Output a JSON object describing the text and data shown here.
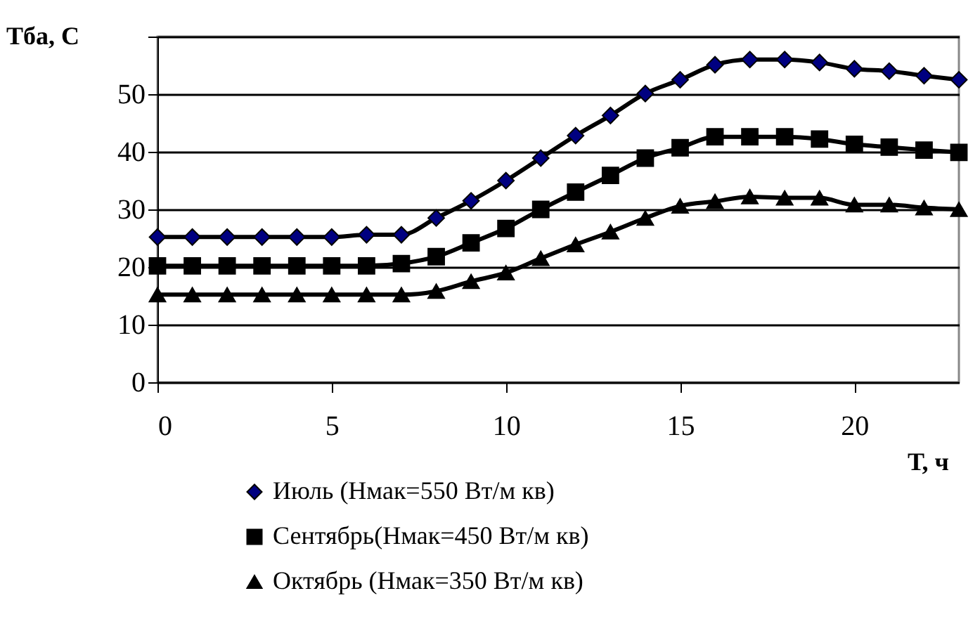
{
  "chart_data": {
    "type": "line",
    "xlabel": "Т, ч",
    "ylabel": "Тба, С",
    "x": [
      0,
      1,
      2,
      3,
      4,
      5,
      6,
      7,
      8,
      9,
      10,
      11,
      12,
      13,
      14,
      15,
      16,
      17,
      18,
      19,
      20,
      21,
      22,
      23
    ],
    "xlim": [
      0,
      23
    ],
    "xticks": [
      0,
      5,
      10,
      15,
      20
    ],
    "ylim": [
      0,
      60
    ],
    "yticks": [
      0,
      10,
      20,
      30,
      40,
      50,
      {
        "value": 60,
        "label": null
      }
    ],
    "grid": "y",
    "legend": "bottom",
    "line_style": "solid",
    "series": [
      {
        "name": "Июль (Нмак=550 Вт/м кв)",
        "color": "#000080",
        "marker": "diamond",
        "values": [
          25.2,
          25.2,
          25.2,
          25.2,
          25.2,
          25.2,
          25.6,
          25.6,
          28.5,
          31.5,
          35.0,
          38.9,
          42.8,
          46.3,
          50.1,
          52.5,
          55.1,
          56.0,
          56.0,
          55.5,
          54.4,
          54.0,
          53.2,
          52.5
        ]
      },
      {
        "name": "Сентябрь(Нмак=450 Вт/м кв)",
        "color": "#000000",
        "marker": "square",
        "values": [
          20.2,
          20.2,
          20.2,
          20.2,
          20.2,
          20.2,
          20.2,
          20.6,
          21.8,
          24.2,
          26.7,
          30.0,
          33.0,
          35.9,
          38.9,
          40.7,
          42.6,
          42.6,
          42.6,
          42.2,
          41.3,
          40.8,
          40.3,
          39.9
        ]
      },
      {
        "name": "Октябрь (Нмак=350 Вт/м кв)",
        "color": "#000000",
        "marker": "triangle",
        "values": [
          15.2,
          15.2,
          15.2,
          15.2,
          15.2,
          15.2,
          15.2,
          15.2,
          15.8,
          17.5,
          19.0,
          21.5,
          23.9,
          26.1,
          28.5,
          30.6,
          31.4,
          32.2,
          32.0,
          32.0,
          30.8,
          30.8,
          30.3,
          30.0
        ]
      }
    ]
  }
}
